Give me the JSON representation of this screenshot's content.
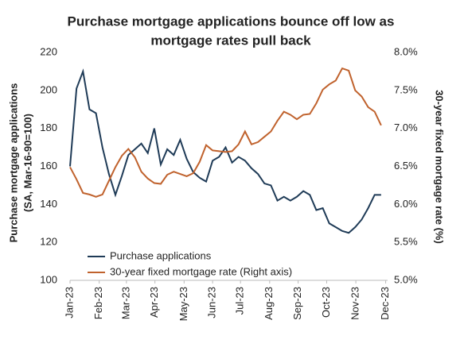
{
  "chart_data": {
    "type": "line",
    "title": [
      "Purchase mortgage applications bounce off low as",
      "mortgage rates pull back"
    ],
    "ylabel": [
      "Purchase mortgage applications",
      "(SA, Mar-16-90=100)"
    ],
    "y2label": "30-year fixed mortgage rate (%)",
    "x": [
      0,
      1,
      2,
      3,
      4,
      5,
      6,
      7,
      8,
      9,
      10,
      11,
      12,
      13,
      14,
      15,
      16,
      17,
      18,
      19,
      20,
      21,
      22,
      23,
      24,
      25,
      26,
      27,
      28,
      29,
      30,
      31,
      32,
      33,
      34,
      35,
      36,
      37,
      38,
      39,
      40,
      41,
      42,
      43,
      44,
      45,
      46,
      47,
      48
    ],
    "xlim": [
      0,
      49
    ],
    "xticks": [
      {
        "value": 0,
        "label": "Jan-23"
      },
      {
        "value": 4.5,
        "label": "Feb-23"
      },
      {
        "value": 8.7,
        "label": "Mar-23"
      },
      {
        "value": 13.1,
        "label": "Apr-23"
      },
      {
        "value": 17.6,
        "label": "May-23"
      },
      {
        "value": 22,
        "label": "Jun-23"
      },
      {
        "value": 26.3,
        "label": "Jul-23"
      },
      {
        "value": 30.8,
        "label": "Aug-23"
      },
      {
        "value": 35.2,
        "label": "Sep-23"
      },
      {
        "value": 39.6,
        "label": "Oct-23"
      },
      {
        "value": 44.1,
        "label": "Nov-23"
      },
      {
        "value": 48.7,
        "label": "Dec-23"
      }
    ],
    "ylim": [
      100,
      220
    ],
    "yticks": [
      100,
      120,
      140,
      160,
      180,
      200,
      220
    ],
    "y2lim": [
      5,
      8
    ],
    "y2ticks": [
      {
        "value": 5,
        "label": "5.0%"
      },
      {
        "value": 5.5,
        "label": "5.5%"
      },
      {
        "value": 6,
        "label": "6.0%"
      },
      {
        "value": 6.5,
        "label": "6.5%"
      },
      {
        "value": 7,
        "label": "7.0%"
      },
      {
        "value": 7.5,
        "label": "7.5%"
      },
      {
        "value": 8,
        "label": "8.0%"
      }
    ],
    "series": [
      {
        "name": "Purchase applications",
        "color": "#1f3b57",
        "values": [
          160,
          201,
          210,
          190,
          188,
          170,
          156,
          145,
          155,
          166,
          169,
          172,
          167,
          180,
          161,
          169,
          166,
          174,
          164,
          157,
          154,
          152,
          163,
          165,
          170,
          162,
          165,
          163,
          159,
          156,
          151,
          150,
          142,
          144,
          142,
          144,
          147,
          145,
          137,
          138,
          130,
          128,
          126,
          125,
          128,
          132,
          138,
          145,
          145
        ]
      },
      {
        "name": "30-year fixed mortgage rate (Right axis)",
        "color": "#c0622d",
        "axis": "y2",
        "values": [
          6.49,
          6.33,
          6.15,
          6.13,
          6.1,
          6.13,
          6.31,
          6.49,
          6.64,
          6.73,
          6.62,
          6.43,
          6.34,
          6.28,
          6.27,
          6.39,
          6.43,
          6.4,
          6.37,
          6.41,
          6.56,
          6.78,
          6.71,
          6.7,
          6.69,
          6.7,
          6.79,
          6.96,
          6.79,
          6.82,
          6.89,
          6.96,
          7.1,
          7.22,
          7.18,
          7.12,
          7.18,
          7.19,
          7.33,
          7.51,
          7.58,
          7.63,
          7.79,
          7.76,
          7.5,
          7.42,
          7.28,
          7.22,
          7.04
        ]
      }
    ]
  }
}
